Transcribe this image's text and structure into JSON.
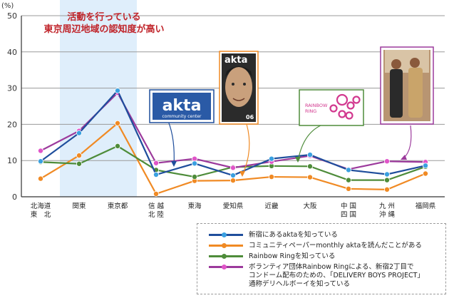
{
  "chart_data": {
    "type": "line",
    "y_unit": "(%)",
    "ylim": [
      0,
      50
    ],
    "yticks": [
      0,
      10,
      20,
      30,
      40,
      50
    ],
    "grid": true,
    "legend_position": "bottom-right",
    "categories": [
      "北海道\n東　北",
      "関東",
      "東京都",
      "信 越\n北 陸",
      "東海",
      "愛知県",
      "近畿",
      "大阪",
      "中 国\n四 国",
      "九 州\n沖 縄",
      "福岡県"
    ],
    "highlight_categories": [
      "関東",
      "東京都"
    ],
    "annotation": "活動を行っている\n東京周辺地域の認知度が高い",
    "series": [
      {
        "name": "新宿にあるaktaを知っている",
        "color": "#1f4e9c",
        "marker": "#3aa0e0",
        "values": [
          9.8,
          17.6,
          29.3,
          6.1,
          9.2,
          5.9,
          10.5,
          11.6,
          7.4,
          6.2,
          8.6
        ]
      },
      {
        "name": "コミュニティペーパーmonthly aktaを読んだことがある",
        "color": "#f08a24",
        "marker": "#f08a24",
        "values": [
          5.0,
          11.4,
          20.3,
          0.8,
          4.4,
          4.5,
          5.5,
          5.4,
          2.2,
          2.0,
          6.4
        ]
      },
      {
        "name": "Rainbow Ringを知っている",
        "color": "#4e8c3a",
        "marker": "#4e8c3a",
        "values": [
          9.6,
          9.1,
          14.0,
          7.4,
          5.5,
          8.2,
          8.5,
          8.4,
          4.6,
          4.6,
          8.3
        ]
      },
      {
        "name": "ボランティア団体Rainbow Ringによる、新宿2丁目で\nコンドーム配布のための、「DELIVERY BOYS PROJECT」\n通称デリヘルボーイを知っている",
        "color": "#9c3a9c",
        "marker": "#e055c8",
        "values": [
          12.7,
          18.2,
          28.7,
          9.3,
          10.5,
          8.0,
          9.7,
          11.3,
          7.6,
          9.8,
          9.6
        ]
      }
    ]
  },
  "images": {
    "akta_logo_text": "akta",
    "akta_logo_sub": "community center",
    "photo_top_text": "akta",
    "photo_number": "06",
    "rainbow_ring_logo_text": "RAINBOW RING"
  }
}
